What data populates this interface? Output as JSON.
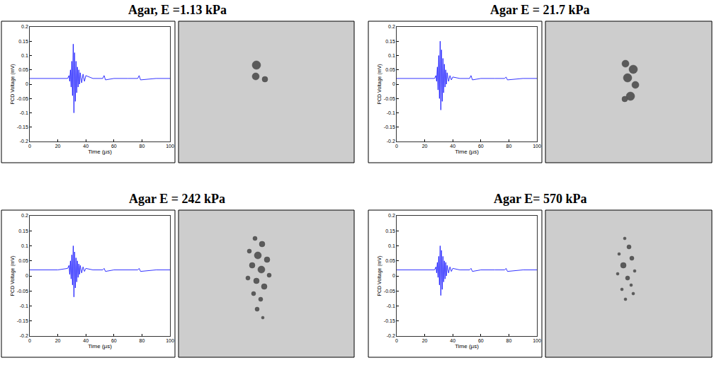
{
  "chart_data": [
    {
      "type": "line",
      "title": "Agar, E =1.13 kPa",
      "x_label": "Time (µs)",
      "y_label": "PCD Voltage (mV)",
      "color": "#0000ff",
      "xlim": [
        0,
        100
      ],
      "ylim": [
        -0.2,
        0.2
      ],
      "xticks": [
        0,
        20,
        40,
        60,
        80,
        100
      ],
      "yticks": [
        -0.2,
        -0.15,
        -0.1,
        -0.05,
        0,
        0.05,
        0.1,
        0.15,
        0.2
      ],
      "grid": false,
      "x": [
        0,
        10,
        20,
        27,
        28,
        28.5,
        29,
        29.5,
        30,
        30.5,
        31,
        31.5,
        32,
        32.5,
        33,
        33.5,
        34,
        34.5,
        35,
        35.5,
        36,
        37,
        38,
        39,
        40,
        45,
        52,
        53,
        54,
        60,
        70,
        77,
        78,
        79,
        90,
        100
      ],
      "values": [
        0.02,
        0.02,
        0.02,
        0.02,
        0.03,
        0.01,
        0.05,
        -0.01,
        0.08,
        -0.04,
        0.14,
        -0.1,
        0.11,
        -0.06,
        0.08,
        -0.03,
        0.06,
        -0.01,
        0.05,
        0,
        0.04,
        0.005,
        0.035,
        0.01,
        0.03,
        0.02,
        0.02,
        0.03,
        0.015,
        0.02,
        0.02,
        0.02,
        0.03,
        0.015,
        0.02,
        0.02
      ]
    },
    {
      "type": "line",
      "title": "Agar E = 21.7 kPa",
      "x_label": "Time (µs)",
      "y_label": "PCD Voltage (mV)",
      "color": "#0000ff",
      "xlim": [
        0,
        100
      ],
      "ylim": [
        -0.2,
        0.2
      ],
      "xticks": [
        0,
        20,
        40,
        60,
        80,
        100
      ],
      "yticks": [
        -0.2,
        -0.15,
        -0.1,
        -0.05,
        0,
        0.05,
        0.1,
        0.15,
        0.2
      ],
      "grid": false,
      "x": [
        0,
        10,
        20,
        27,
        28,
        28.5,
        29,
        29.5,
        30,
        30.5,
        31,
        31.5,
        32,
        32.5,
        33,
        33.5,
        34,
        34.5,
        35,
        35.5,
        36,
        37,
        38,
        39,
        40,
        45,
        52,
        53,
        54,
        60,
        70,
        77,
        78,
        79,
        90,
        100
      ],
      "values": [
        0.02,
        0.02,
        0.02,
        0.02,
        0.03,
        0.01,
        0.06,
        -0.02,
        0.1,
        -0.05,
        0.15,
        -0.09,
        0.12,
        -0.06,
        0.09,
        -0.03,
        0.07,
        -0.01,
        0.05,
        0,
        0.04,
        0.01,
        0.03,
        0.015,
        0.025,
        0.02,
        0.02,
        0.03,
        0.015,
        0.02,
        0.02,
        0.02,
        0.025,
        0.015,
        0.02,
        0.02
      ]
    },
    {
      "type": "line",
      "title": "Agar E = 242 kPa",
      "x_label": "Time (µs)",
      "y_label": "PCD Voltage (mV)",
      "color": "#0000ff",
      "xlim": [
        0,
        100
      ],
      "ylim": [
        -0.2,
        0.2
      ],
      "xticks": [
        0,
        20,
        40,
        60,
        80,
        100
      ],
      "yticks": [
        -0.2,
        -0.15,
        -0.1,
        -0.05,
        0,
        0.05,
        0.1,
        0.15,
        0.2
      ],
      "grid": false,
      "x": [
        0,
        10,
        20,
        27,
        28,
        28.5,
        29,
        29.5,
        30,
        30.5,
        31,
        31.5,
        32,
        32.5,
        33,
        33.5,
        34,
        34.5,
        35,
        35.5,
        36,
        37,
        38,
        39,
        40,
        45,
        52,
        53,
        54,
        60,
        70,
        77,
        78,
        79,
        90,
        100
      ],
      "values": [
        0.02,
        0.02,
        0.02,
        0.025,
        0.035,
        0.005,
        0.05,
        -0.01,
        0.07,
        -0.03,
        0.1,
        -0.07,
        0.08,
        -0.04,
        0.06,
        -0.02,
        0.05,
        -0.005,
        0.04,
        0.005,
        0.035,
        0.01,
        0.03,
        0.015,
        0.025,
        0.02,
        0.02,
        0.025,
        0.015,
        0.02,
        0.02,
        0.02,
        0.025,
        0.015,
        0.02,
        0.02
      ]
    },
    {
      "type": "line",
      "title": "Agar E= 570 kPa",
      "x_label": "Time (µs)",
      "y_label": "PCD Voltage (mV)",
      "color": "#0000ff",
      "xlim": [
        0,
        100
      ],
      "ylim": [
        -0.2,
        0.2
      ],
      "xticks": [
        0,
        20,
        40,
        60,
        80,
        100
      ],
      "yticks": [
        -0.2,
        -0.15,
        -0.1,
        -0.05,
        0,
        0.05,
        0.1,
        0.15,
        0.2
      ],
      "grid": false,
      "x": [
        0,
        10,
        20,
        27,
        28,
        28.5,
        29,
        29.5,
        30,
        30.5,
        31,
        31.5,
        32,
        32.5,
        33,
        33.5,
        34,
        34.5,
        35,
        35.5,
        36,
        37,
        38,
        39,
        40,
        45,
        52,
        53,
        54,
        60,
        70,
        77,
        78,
        79,
        90,
        100
      ],
      "values": [
        0.02,
        0.02,
        0.02,
        0.02,
        0.03,
        0.01,
        0.045,
        -0.005,
        0.065,
        -0.03,
        0.1,
        -0.065,
        0.085,
        -0.045,
        0.065,
        -0.02,
        0.05,
        -0.01,
        0.045,
        0,
        0.035,
        0.01,
        0.03,
        0.015,
        0.025,
        0.02,
        0.02,
        0.025,
        0.015,
        0.02,
        0.02,
        0.02,
        0.025,
        0.015,
        0.02,
        0.02
      ]
    }
  ]
}
